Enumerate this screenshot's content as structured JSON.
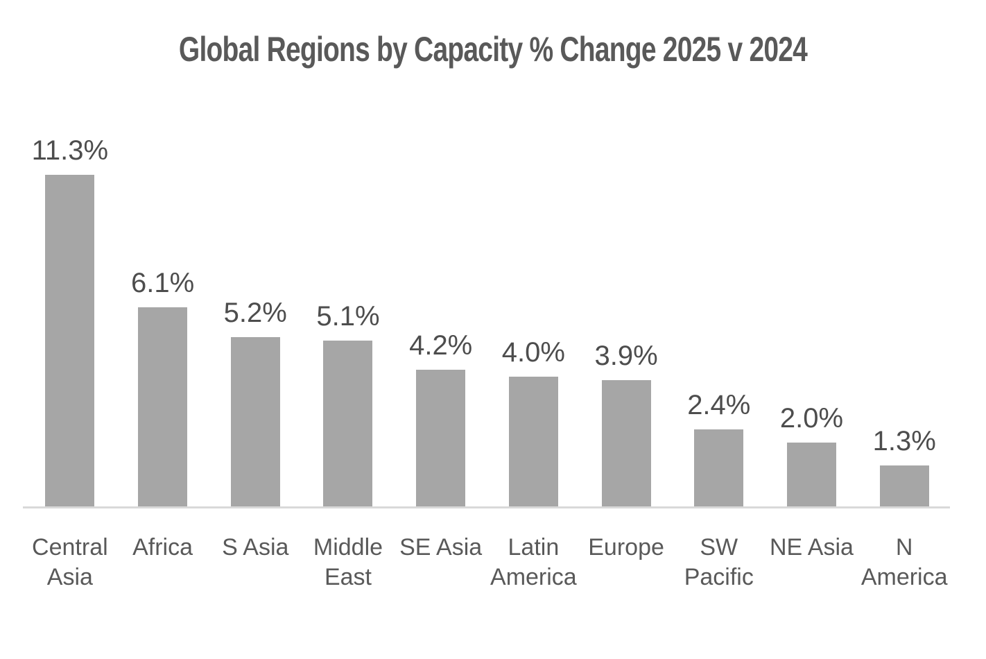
{
  "chart_data": {
    "type": "bar",
    "title": "Global Regions by Capacity % Change 2025 v 2024",
    "categories": [
      "Central Asia",
      "Africa",
      "S Asia",
      "Middle East",
      "SE Asia",
      "Latin America",
      "Europe",
      "SW Pacific",
      "NE Asia",
      "N America"
    ],
    "category_label_lines": [
      [
        "Central",
        "Asia"
      ],
      [
        "Africa"
      ],
      [
        "S Asia"
      ],
      [
        "Middle",
        "East"
      ],
      [
        "SE Asia"
      ],
      [
        "Latin",
        "America"
      ],
      [
        "Europe"
      ],
      [
        "SW",
        "Pacific"
      ],
      [
        "NE Asia"
      ],
      [
        "N",
        "America"
      ]
    ],
    "values": [
      11.3,
      6.1,
      5.2,
      5.1,
      4.2,
      4.0,
      3.9,
      2.4,
      2.0,
      1.3
    ],
    "value_labels": [
      "11.3%",
      "6.1%",
      "5.2%",
      "5.1%",
      "4.2%",
      "4.0%",
      "3.9%",
      "2.4%",
      "2.0%",
      "1.3%"
    ],
    "xlabel": "",
    "ylabel": "",
    "ylim": [
      0,
      11.3
    ],
    "grid": false,
    "legend": false,
    "y_axis_visible": false,
    "colors": {
      "bar": "#a6a6a6",
      "axis_line": "#d9d9d9",
      "title": "#595959",
      "value_label": "#4d4d4d",
      "tick_label": "#595959",
      "background": "#ffffff"
    }
  }
}
